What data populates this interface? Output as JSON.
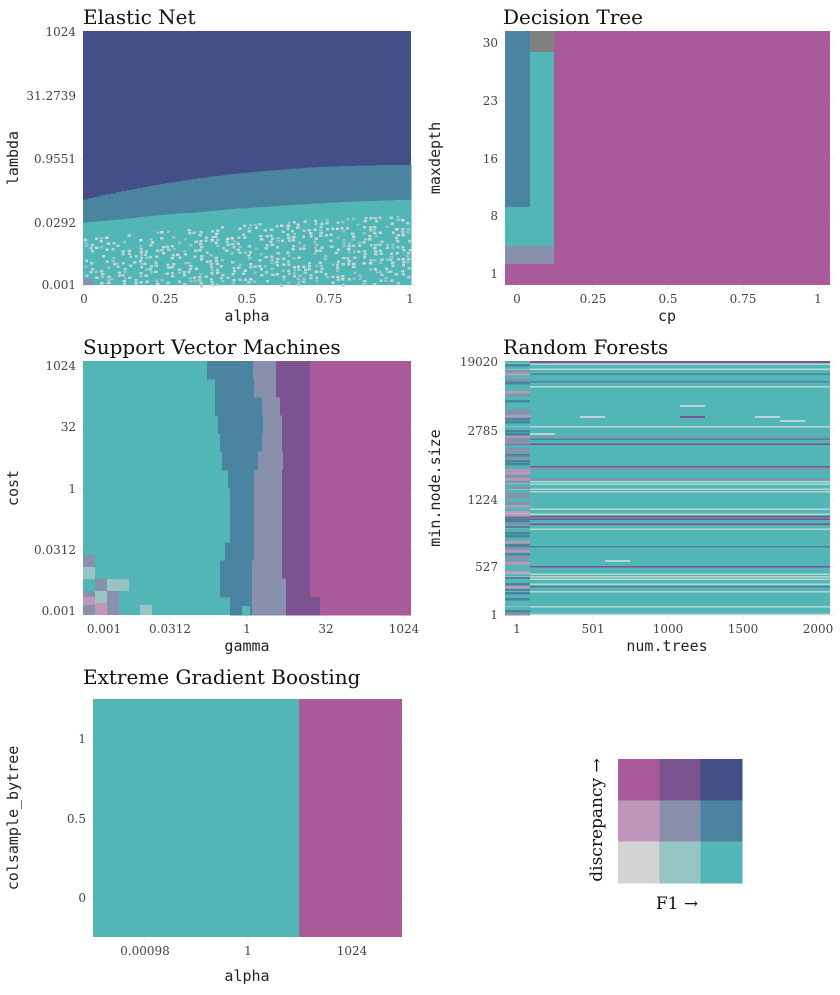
{
  "palette": {
    "pink": "#A95A9B",
    "purple": "#7B5390",
    "navy": "#434F86",
    "lightpink": "#C097BA",
    "greyblue": "#8990AC",
    "steel": "#4A84A0",
    "lightgrey": "#D4D4D4",
    "lightteal": "#97C4C4",
    "teal": "#52B6B6",
    "grey": "#808080",
    "tealpale": "#B8D5D3"
  },
  "chart_data": [
    {
      "type": "heatmap",
      "title": "Elastic Net",
      "xlabel": "alpha",
      "ylabel": "lambda",
      "xticks": [
        "0",
        "0.25",
        "0.5",
        "0.75",
        "1"
      ],
      "yticks": [
        "0.001",
        "0.0292",
        "0.9551",
        "31.2739",
        "1024"
      ],
      "regions": [
        {
          "class": "navy",
          "description": "high lambda"
        },
        {
          "class": "steel",
          "description": "mid lambda band"
        },
        {
          "class": "teal",
          "description": "low lambda, noisy"
        }
      ]
    },
    {
      "type": "heatmap",
      "title": "Decision Tree",
      "xlabel": "cp",
      "ylabel": "maxdepth",
      "xticks": [
        "0",
        "0.25",
        "0.5",
        "0.75",
        "1"
      ],
      "yticks": [
        "1",
        "8",
        "16",
        "23",
        "30"
      ],
      "regions": [
        {
          "class": "pink",
          "description": "cp > ~0.12"
        },
        {
          "class": "steel",
          "description": "cp ~0, maxdepth > 9"
        },
        {
          "class": "teal",
          "description": "cp ~0.05-0.12"
        },
        {
          "class": "greyblue",
          "description": "maxdepth 3-5"
        },
        {
          "class": "grey",
          "description": "top cell"
        }
      ]
    },
    {
      "type": "heatmap",
      "title": "Support Vector Machines",
      "xlabel": "gamma",
      "ylabel": "cost",
      "xticks": [
        "0.001",
        "0.0312",
        "1",
        "32",
        "1024"
      ],
      "yticks": [
        "0.001",
        "0.0312",
        "1",
        "32",
        "1024"
      ],
      "regions": [
        {
          "class": "teal",
          "description": "low gamma"
        },
        {
          "class": "steel",
          "description": "gamma ~0.2-1"
        },
        {
          "class": "greyblue",
          "description": "gamma ~1-3"
        },
        {
          "class": "purple",
          "description": "gamma ~3-16"
        },
        {
          "class": "pink",
          "description": "gamma > 16"
        }
      ]
    },
    {
      "type": "heatmap",
      "title": "Random Forests",
      "xlabel": "num.trees",
      "ylabel": "min.node.size",
      "xticks": [
        "1",
        "501",
        "1000",
        "1500",
        "2000"
      ],
      "yticks": [
        "1",
        "527",
        "1224",
        "2785",
        "19020"
      ],
      "regions": [
        {
          "class": "teal",
          "description": "majority"
        },
        {
          "class": "steel",
          "description": "scattered rows"
        },
        {
          "class": "purple",
          "description": "scattered rows"
        }
      ]
    },
    {
      "type": "heatmap",
      "title": "Extreme Gradient Boosting",
      "xlabel": "alpha",
      "ylabel": "colsample_bytree",
      "xticks": [
        "0.00098",
        "1",
        "1024"
      ],
      "yticks": [
        "0",
        "0.5",
        "1"
      ],
      "regions": [
        {
          "class": "teal",
          "description": "alpha < ~10"
        },
        {
          "class": "pink",
          "description": "alpha > ~10"
        }
      ]
    }
  ],
  "legend": {
    "xlabel": "F1 →",
    "ylabel": "discrepancy →",
    "grid": [
      [
        "pink",
        "purple",
        "navy"
      ],
      [
        "lightpink",
        "greyblue",
        "steel"
      ],
      [
        "lightgrey",
        "lightteal",
        "teal"
      ]
    ]
  }
}
